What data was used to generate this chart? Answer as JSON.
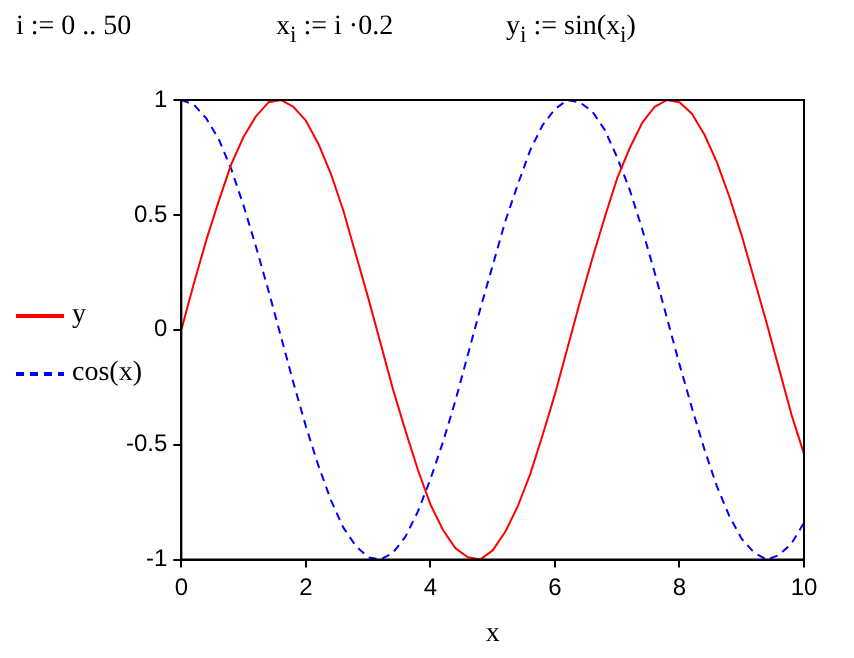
{
  "chart_data": {
    "type": "line",
    "xlabel": "x",
    "annotations": [
      "i := 0 .. 50",
      "x$_{i}$ := i ·0.2",
      "y$_{i}$ := sin(x$_{i}$)"
    ],
    "x": [
      0,
      0.2,
      0.4,
      0.6,
      0.8,
      1,
      1.2,
      1.4,
      1.6,
      1.8,
      2,
      2.2,
      2.4,
      2.6,
      2.8,
      3,
      3.2,
      3.4,
      3.6,
      3.8,
      4,
      4.2,
      4.4,
      4.6,
      4.8,
      5,
      5.2,
      5.4,
      5.6,
      5.8,
      6,
      6.2,
      6.4,
      6.6,
      6.8,
      7,
      7.2,
      7.4,
      7.6,
      7.8,
      8,
      8.2,
      8.4,
      8.6,
      8.8,
      9,
      9.2,
      9.4,
      9.6,
      9.8,
      10
    ],
    "series": [
      {
        "name": "y",
        "color": "#ff0000",
        "line_style": "solid",
        "values": [
          0,
          0.2,
          0.39,
          0.56,
          0.72,
          0.84,
          0.93,
          0.99,
          1,
          0.97,
          0.91,
          0.81,
          0.68,
          0.52,
          0.33,
          0.14,
          -0.06,
          -0.26,
          -0.44,
          -0.61,
          -0.76,
          -0.87,
          -0.95,
          -0.99,
          -1,
          -0.96,
          -0.88,
          -0.77,
          -0.63,
          -0.46,
          -0.28,
          -0.08,
          0.12,
          0.31,
          0.49,
          0.66,
          0.79,
          0.9,
          0.97,
          1,
          0.99,
          0.94,
          0.85,
          0.73,
          0.58,
          0.41,
          0.22,
          0.03,
          -0.17,
          -0.37,
          -0.54
        ]
      },
      {
        "name": "cos(x)",
        "color": "#0000ff",
        "line_style": "dashed",
        "values": [
          1,
          0.98,
          0.92,
          0.83,
          0.7,
          0.54,
          0.36,
          0.17,
          -0.03,
          -0.23,
          -0.42,
          -0.59,
          -0.74,
          -0.86,
          -0.94,
          -0.99,
          -1,
          -0.97,
          -0.9,
          -0.79,
          -0.65,
          -0.49,
          -0.31,
          -0.11,
          0.09,
          0.28,
          0.47,
          0.63,
          0.78,
          0.89,
          0.96,
          1,
          0.99,
          0.95,
          0.87,
          0.75,
          0.61,
          0.44,
          0.25,
          0.05,
          -0.15,
          -0.34,
          -0.52,
          -0.68,
          -0.81,
          -0.91,
          -0.97,
          -1,
          -0.98,
          -0.93,
          -0.84
        ]
      }
    ],
    "xlim": [
      0,
      10
    ],
    "xticks": [
      0,
      2,
      4,
      6,
      8,
      10
    ],
    "ylim": [
      -1,
      1
    ],
    "yticks": [
      -1,
      -0.5,
      0,
      0.5,
      1
    ],
    "grid": false,
    "legend": "left",
    "marker": "none"
  }
}
